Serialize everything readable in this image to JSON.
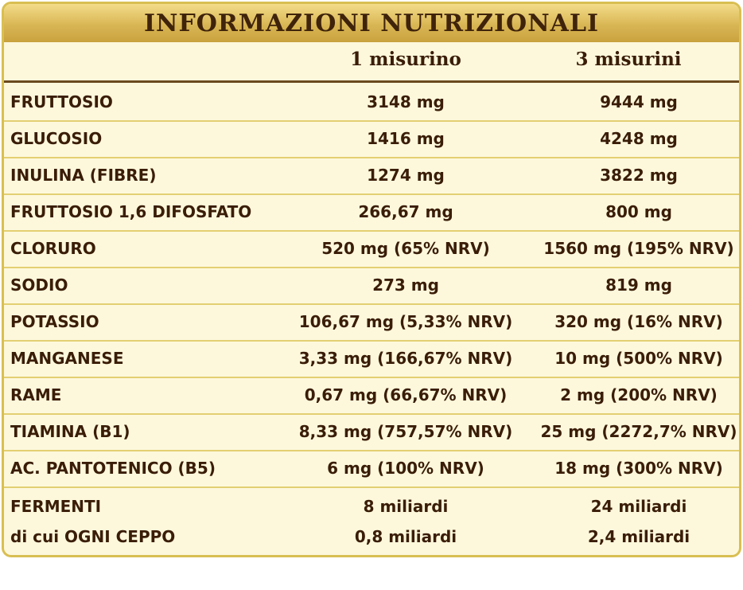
{
  "header": {
    "title": "INFORMAZIONI NUTRIZIONALI"
  },
  "table": {
    "columns": [
      "1 misurino",
      "3 misurini"
    ],
    "rows": [
      [
        "FRUTTOSIO",
        "3148 mg",
        "9444 mg"
      ],
      [
        "GLUCOSIO",
        "1416 mg",
        "4248 mg"
      ],
      [
        "INULINA (FIBRE)",
        "1274 mg",
        "3822 mg"
      ],
      [
        "FRUTTOSIO 1,6 DIFOSFATO",
        "266,67 mg",
        "800 mg"
      ],
      [
        "CLORURO",
        "520 mg (65% NRV)",
        "1560 mg (195% NRV)"
      ],
      [
        "SODIO",
        "273 mg",
        "819 mg"
      ],
      [
        "POTASSIO",
        "106,67 mg (5,33% NRV)",
        "320 mg (16% NRV)"
      ],
      [
        "MANGANESE",
        "3,33 mg (166,67% NRV)",
        "10 mg (500% NRV)"
      ],
      [
        "RAME",
        "0,67 mg (66,67% NRV)",
        "2 mg (200% NRV)"
      ],
      [
        "TIAMINA (B1)",
        "8,33 mg (757,57% NRV)",
        "25 mg (2272,7% NRV)"
      ],
      [
        "AC. PANTOTENICO (B5)",
        "6 mg (100% NRV)",
        "18 mg (300% NRV)"
      ]
    ],
    "last_rows": [
      [
        "FERMENTI",
        "8 miliardi",
        "24 miliardi"
      ],
      [
        "di cui OGNI CEPPO",
        "0,8 miliardi",
        "2,4 miliardi"
      ]
    ]
  }
}
